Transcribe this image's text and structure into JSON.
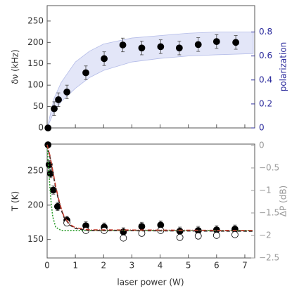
{
  "chart_data": [
    {
      "type": "scatter",
      "ylabel": "δν (kHz)",
      "y2label": "polarization",
      "xlim": [
        0,
        7.35
      ],
      "ylim": [
        0,
        286
      ],
      "yticks": [
        0,
        50,
        100,
        150,
        200,
        250
      ],
      "y2lim": [
        0,
        1.02
      ],
      "y2ticks": [
        0,
        0.2,
        0.4,
        0.6,
        0.8
      ],
      "y2color": "#2a2a9c",
      "band": {
        "axis": "y2",
        "color": "#e3e6f8",
        "edge": "#b4bce8",
        "x": [
          0,
          0.25,
          0.5,
          1,
          1.5,
          2,
          3,
          4,
          5,
          6,
          7.3
        ],
        "lower": [
          0,
          0.14,
          0.22,
          0.33,
          0.42,
          0.48,
          0.55,
          0.58,
          0.6,
          0.61,
          0.62
        ],
        "upper": [
          0,
          0.25,
          0.38,
          0.55,
          0.64,
          0.7,
          0.75,
          0.77,
          0.79,
          0.8,
          0.8
        ]
      },
      "series": [
        {
          "color": "#000000",
          "marker": "filled",
          "x": [
            0.03,
            0.25,
            0.4,
            0.7,
            1.37,
            2.02,
            2.68,
            3.35,
            4.02,
            4.68,
            5.35,
            6.0,
            6.68
          ],
          "values": [
            0,
            45,
            66,
            84,
            129,
            162,
            194,
            187,
            190,
            187,
            195,
            202,
            200
          ],
          "errors": [
            0,
            16,
            16,
            16,
            16,
            16,
            16,
            16,
            16,
            16,
            16,
            16,
            16
          ]
        }
      ]
    },
    {
      "type": "scatter",
      "xlabel": "laser power (W)",
      "ylabel": "T (K)",
      "y2label": "ΔP (dB)",
      "xlim": [
        0,
        7.35
      ],
      "xticks": [
        0,
        1,
        2,
        3,
        4,
        5,
        6,
        7
      ],
      "ylim": [
        123,
        289
      ],
      "yticks": [
        150,
        200,
        250
      ],
      "y2lim": [
        -2.5,
        0.03
      ],
      "y2color": "#999999",
      "y2ticks": [
        0,
        {
          "value": -0.5,
          "label": "−0.5"
        },
        {
          "value": -1,
          "label": "−1"
        },
        {
          "value": -1.5,
          "label": "−1.5"
        },
        {
          "value": -2,
          "label": "−2"
        },
        {
          "value": -2.5,
          "label": "−2.5"
        }
      ],
      "series": [
        {
          "color": "#000000",
          "marker": "filled",
          "x": [
            0.03,
            0.07,
            0.12,
            0.22,
            0.37,
            0.7,
            1.37,
            2.02,
            2.7,
            3.35,
            4.02,
            4.7,
            5.35,
            6.0,
            6.65
          ],
          "values": [
            288,
            259,
            246,
            222,
            198,
            178,
            170,
            168,
            161,
            169,
            171,
            162,
            163,
            164,
            165
          ],
          "errors": [
            0,
            6,
            6,
            6,
            6,
            6,
            6,
            6,
            6,
            6,
            6,
            6,
            6,
            6,
            6
          ]
        },
        {
          "color": "#000000",
          "marker": "open",
          "x": [
            0.7,
            1.37,
            2.02,
            2.7,
            3.35,
            4.02,
            4.7,
            5.35,
            6.0,
            6.65
          ],
          "values": [
            174,
            163,
            163,
            152,
            159,
            163,
            153,
            155,
            156,
            157
          ]
        },
        {
          "color": "#2a9d2a",
          "style": "dotted",
          "x": [
            0,
            0.05,
            0.1,
            0.15,
            0.2,
            0.3,
            0.5,
            7.3
          ],
          "values": [
            288,
            255,
            225,
            200,
            183,
            168,
            163,
            163
          ]
        },
        {
          "color": "#222222",
          "style": "dashed",
          "x": [
            0,
            0.1,
            0.2,
            0.3,
            0.4,
            0.5,
            0.6,
            0.8,
            1.0,
            1.5,
            7.3
          ],
          "values": [
            288,
            270,
            248,
            226,
            208,
            193,
            182,
            171,
            166,
            163,
            162
          ]
        },
        {
          "color": "#c0392b",
          "style": "dash-dot",
          "x": [
            0,
            0.1,
            0.2,
            0.3,
            0.4,
            0.5,
            0.6,
            0.8,
            1.0,
            1.5,
            7.3
          ],
          "values": [
            288,
            272,
            250,
            228,
            210,
            195,
            183,
            172,
            167,
            164,
            163
          ]
        }
      ]
    }
  ]
}
